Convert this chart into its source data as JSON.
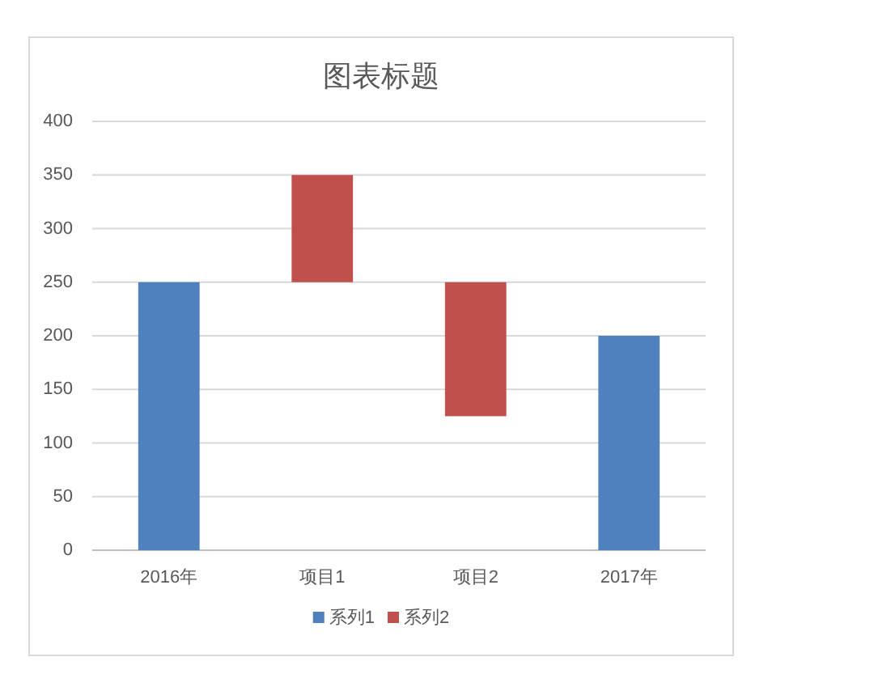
{
  "chart_data": {
    "type": "bar",
    "title": "图表标题",
    "categories": [
      "2016年",
      "项目1",
      "项目2",
      "2017年"
    ],
    "stacked": true,
    "series": [
      {
        "name": "系列1",
        "color": "#4f81bd",
        "values": [
          250,
          null,
          null,
          200
        ]
      },
      {
        "name": "系列2",
        "color": "#c0504d",
        "values": [
          null,
          100,
          125,
          null
        ],
        "base": [
          null,
          250,
          125,
          null
        ]
      }
    ],
    "ylim": [
      0,
      400
    ],
    "yticks": [
      0,
      50,
      100,
      150,
      200,
      250,
      300,
      350,
      400
    ],
    "grid": "y",
    "legend": "bottom"
  }
}
